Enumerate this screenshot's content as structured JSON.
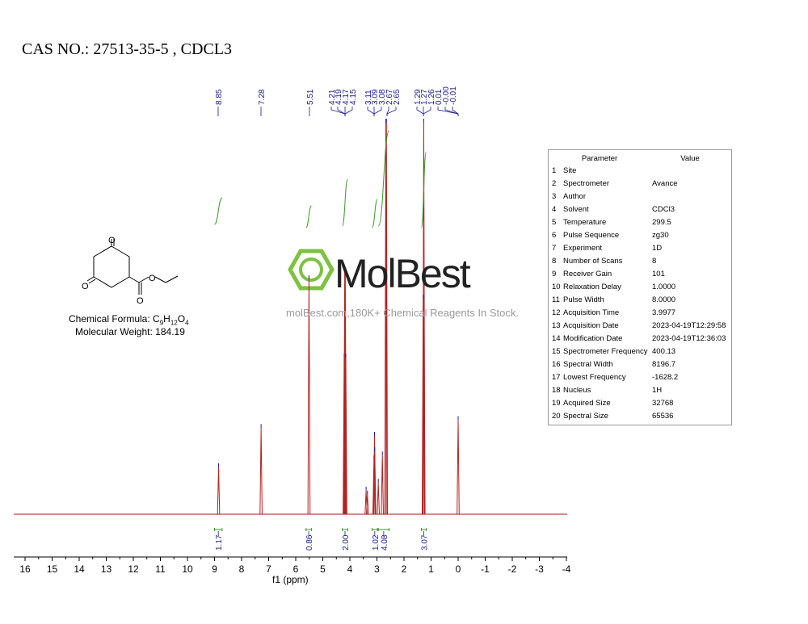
{
  "header": {
    "cas_title": "CAS NO.: 27513-35-5 , CDCL3"
  },
  "compound": {
    "formula_label": "Chemical Formula:",
    "formula_c": "C",
    "formula_c_count": "9",
    "formula_h": "H",
    "formula_h_count": "12",
    "formula_o": "O",
    "formula_o_count": "4",
    "weight_label": "Molecular Weight:",
    "weight_value": "184.19"
  },
  "watermark": {
    "brand": "MolBest",
    "tagline": "molBest.com,180K+ Chemical Reagents In Stock."
  },
  "parameters": {
    "header_param": "Parameter",
    "header_value": "Value",
    "rows": [
      {
        "num": "1",
        "name": "Site",
        "value": ""
      },
      {
        "num": "2",
        "name": "Spectrometer",
        "value": "Avance"
      },
      {
        "num": "3",
        "name": "Author",
        "value": ""
      },
      {
        "num": "4",
        "name": "Solvent",
        "value": "CDCl3"
      },
      {
        "num": "5",
        "name": "Temperature",
        "value": "299.5"
      },
      {
        "num": "6",
        "name": "Pulse Sequence",
        "value": "zg30"
      },
      {
        "num": "7",
        "name": "Experiment",
        "value": "1D"
      },
      {
        "num": "8",
        "name": "Number of Scans",
        "value": "8"
      },
      {
        "num": "9",
        "name": "Receiver Gain",
        "value": "101"
      },
      {
        "num": "10",
        "name": "Relaxation Delay",
        "value": "1.0000"
      },
      {
        "num": "11",
        "name": "Pulse Width",
        "value": "8.0000"
      },
      {
        "num": "12",
        "name": "Acquisition Time",
        "value": "3.9977"
      },
      {
        "num": "13",
        "name": "Acquisition Date",
        "value": "2023-04-19T12:29:58"
      },
      {
        "num": "14",
        "name": "Modification Date",
        "value": "2023-04-19T12:36:03"
      },
      {
        "num": "15",
        "name": "Spectrometer Frequency",
        "value": "400.13"
      },
      {
        "num": "16",
        "name": "Spectral Width",
        "value": "8196.7"
      },
      {
        "num": "17",
        "name": "Lowest Frequency",
        "value": "-1628.2"
      },
      {
        "num": "18",
        "name": "Nucleus",
        "value": "1H"
      },
      {
        "num": "19",
        "name": "Acquired Size",
        "value": "32768"
      },
      {
        "num": "20",
        "name": "Spectral Size",
        "value": "65536"
      }
    ]
  },
  "chart_data": {
    "type": "line",
    "xlabel": "f1 (ppm)",
    "xlim": [
      16,
      -4
    ],
    "x_ticks": [
      "16",
      "15",
      "14",
      "13",
      "12",
      "11",
      "10",
      "9",
      "8",
      "7",
      "6",
      "5",
      "4",
      "3",
      "2",
      "1",
      "0",
      "-1",
      "-2",
      "-3",
      "-4"
    ],
    "x_tick_values": [
      16,
      15,
      14,
      13,
      12,
      11,
      10,
      9,
      8,
      7,
      6,
      5,
      4,
      3,
      2,
      1,
      0,
      -1,
      -2,
      -3,
      -4
    ],
    "peak_labels": [
      "8.85",
      "7.28",
      "5.51",
      "4.21",
      "4.19",
      "4.17",
      "4.15",
      "3.11",
      "3.09",
      "3.08",
      "2.67",
      "2.65",
      "1.29",
      "1.27",
      "1.26",
      "0.01",
      "-0.00",
      "-0.01"
    ],
    "peaks": [
      {
        "ppm": 8.85,
        "height": 0.12
      },
      {
        "ppm": 7.28,
        "height": 0.22
      },
      {
        "ppm": 5.51,
        "height": 0.6
      },
      {
        "ppm": 4.21,
        "height": 0.4
      },
      {
        "ppm": 4.19,
        "height": 0.62
      },
      {
        "ppm": 4.17,
        "height": 0.62
      },
      {
        "ppm": 4.15,
        "height": 0.4
      },
      {
        "ppm": 3.4,
        "height": 0.06
      },
      {
        "ppm": 3.35,
        "height": 0.05
      },
      {
        "ppm": 3.11,
        "height": 0.14
      },
      {
        "ppm": 3.09,
        "height": 0.2
      },
      {
        "ppm": 3.08,
        "height": 0.16
      },
      {
        "ppm": 2.95,
        "height": 0.08
      },
      {
        "ppm": 2.8,
        "height": 0.15
      },
      {
        "ppm": 2.67,
        "height": 1.0
      },
      {
        "ppm": 2.65,
        "height": 1.0
      },
      {
        "ppm": 1.29,
        "height": 0.55
      },
      {
        "ppm": 1.27,
        "height": 1.0
      },
      {
        "ppm": 1.26,
        "height": 0.55
      },
      {
        "ppm": 0.0,
        "height": 0.24
      }
    ],
    "integrals": [
      {
        "from": 9.0,
        "to": 8.72,
        "value": "1.17"
      },
      {
        "from": 5.62,
        "to": 5.42,
        "value": "0.86"
      },
      {
        "from": 4.28,
        "to": 4.08,
        "value": "2.00"
      },
      {
        "from": 3.18,
        "to": 2.98,
        "value": "1.02"
      },
      {
        "from": 2.95,
        "to": 2.55,
        "value": "4.08"
      },
      {
        "from": 1.36,
        "to": 1.18,
        "value": "3.07"
      }
    ]
  }
}
